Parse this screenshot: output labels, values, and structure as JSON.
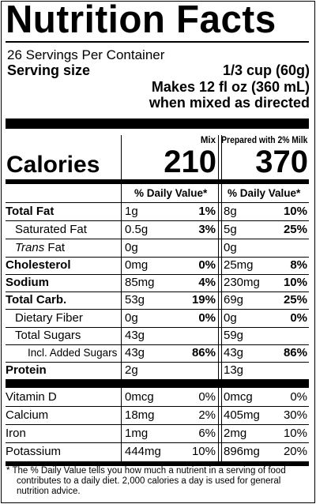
{
  "title": "Nutrition Facts",
  "servings_per_container": "26 Servings Per Container",
  "serving_size": {
    "label": "Serving size",
    "line1": "1/3 cup (60g)",
    "line2": "Makes 12 fl oz (360 mL)",
    "line3": "when mixed as directed"
  },
  "columns": {
    "mix": "Mix",
    "prepared": "Prepared with 2% Milk"
  },
  "calories": {
    "label": "Calories",
    "mix": "210",
    "prepared": "370"
  },
  "daily_value_header": "% Daily Value*",
  "nutrients": [
    {
      "name": "Total Fat",
      "mix_amount": "1g",
      "mix_dv": "1%",
      "prep_amount": "8g",
      "prep_dv": "10%"
    },
    {
      "name": "Saturated Fat",
      "mix_amount": "0.5g",
      "mix_dv": "3%",
      "prep_amount": "5g",
      "prep_dv": "25%"
    },
    {
      "name_italic": "Trans",
      "name": "Fat",
      "mix_amount": "0g",
      "mix_dv": "",
      "prep_amount": "0g",
      "prep_dv": ""
    },
    {
      "name": "Cholesterol",
      "mix_amount": "0mg",
      "mix_dv": "0%",
      "prep_amount": "25mg",
      "prep_dv": "8%"
    },
    {
      "name": "Sodium",
      "mix_amount": "85mg",
      "mix_dv": "4%",
      "prep_amount": "230mg",
      "prep_dv": "10%"
    },
    {
      "name": "Total Carb.",
      "mix_amount": "53g",
      "mix_dv": "19%",
      "prep_amount": "69g",
      "prep_dv": "25%"
    },
    {
      "name": "Dietary Fiber",
      "mix_amount": "0g",
      "mix_dv": "0%",
      "prep_amount": "0g",
      "prep_dv": "0%"
    },
    {
      "name": "Total Sugars",
      "mix_amount": "43g",
      "mix_dv": "",
      "prep_amount": "59g",
      "prep_dv": ""
    },
    {
      "name": "Incl. Added Sugars",
      "mix_amount": "43g",
      "mix_dv": "86%",
      "prep_amount": "43g",
      "prep_dv": "86%"
    },
    {
      "name": "Protein",
      "mix_amount": "2g",
      "mix_dv": "",
      "prep_amount": "13g",
      "prep_dv": ""
    }
  ],
  "vitamins": [
    {
      "name": "Vitamin D",
      "mix_amount": "0mcg",
      "mix_dv": "0%",
      "prep_amount": "0mcg",
      "prep_dv": "0%"
    },
    {
      "name": "Calcium",
      "mix_amount": "18mg",
      "mix_dv": "2%",
      "prep_amount": "405mg",
      "prep_dv": "30%"
    },
    {
      "name": "Iron",
      "mix_amount": "1mg",
      "mix_dv": "6%",
      "prep_amount": "2mg",
      "prep_dv": "10%"
    },
    {
      "name": "Potassium",
      "mix_amount": "444mg",
      "mix_dv": "10%",
      "prep_amount": "896mg",
      "prep_dv": "20%"
    }
  ],
  "footnote": {
    "line1": "* The % Daily Value tells you how much a nutrient in a serving of food",
    "rest": "contributes to a daily diet. 2,000 calories a day is used for general nutrition advice."
  }
}
